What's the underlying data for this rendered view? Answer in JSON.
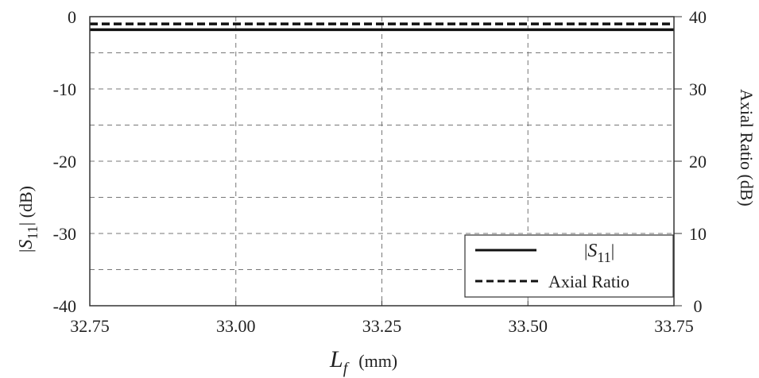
{
  "chart_data": {
    "type": "line",
    "xlabel": {
      "symbol": "L",
      "subscript": "f",
      "unit": "(mm)"
    },
    "ylabel_left": {
      "prefix": "|",
      "symbol": "S",
      "subscript": "11",
      "suffix": "| (dB)"
    },
    "ylabel_right": "Axial Ratio (dB)",
    "xlim": [
      32.75,
      33.75
    ],
    "ylim_left": [
      -40,
      0
    ],
    "ylim_right": [
      0,
      40
    ],
    "x_ticks": [
      "32.75",
      "33.00",
      "33.25",
      "33.50",
      "33.75"
    ],
    "y_left_ticks": [
      "0",
      "-10",
      "-20",
      "-30",
      "-40"
    ],
    "y_right_ticks": [
      "40",
      "30",
      "20",
      "10",
      "0"
    ],
    "grid": true,
    "legend_position": "bottom-right",
    "series": [
      {
        "name": "|S11|",
        "axis": "left",
        "style": "solid",
        "color": "#111111",
        "x": [
          32.75,
          33.75
        ],
        "y": [
          -1.8,
          -1.8
        ]
      },
      {
        "name": "Axial Ratio",
        "axis": "right",
        "style": "dashed",
        "color": "#111111",
        "x": [
          32.75,
          33.75
        ],
        "y": [
          39.0,
          39.0
        ]
      }
    ],
    "legend": [
      {
        "symbol": "S",
        "subscript": "11",
        "prefix": "|",
        "suffix": "|"
      },
      {
        "text": "Axial Ratio"
      }
    ]
  }
}
